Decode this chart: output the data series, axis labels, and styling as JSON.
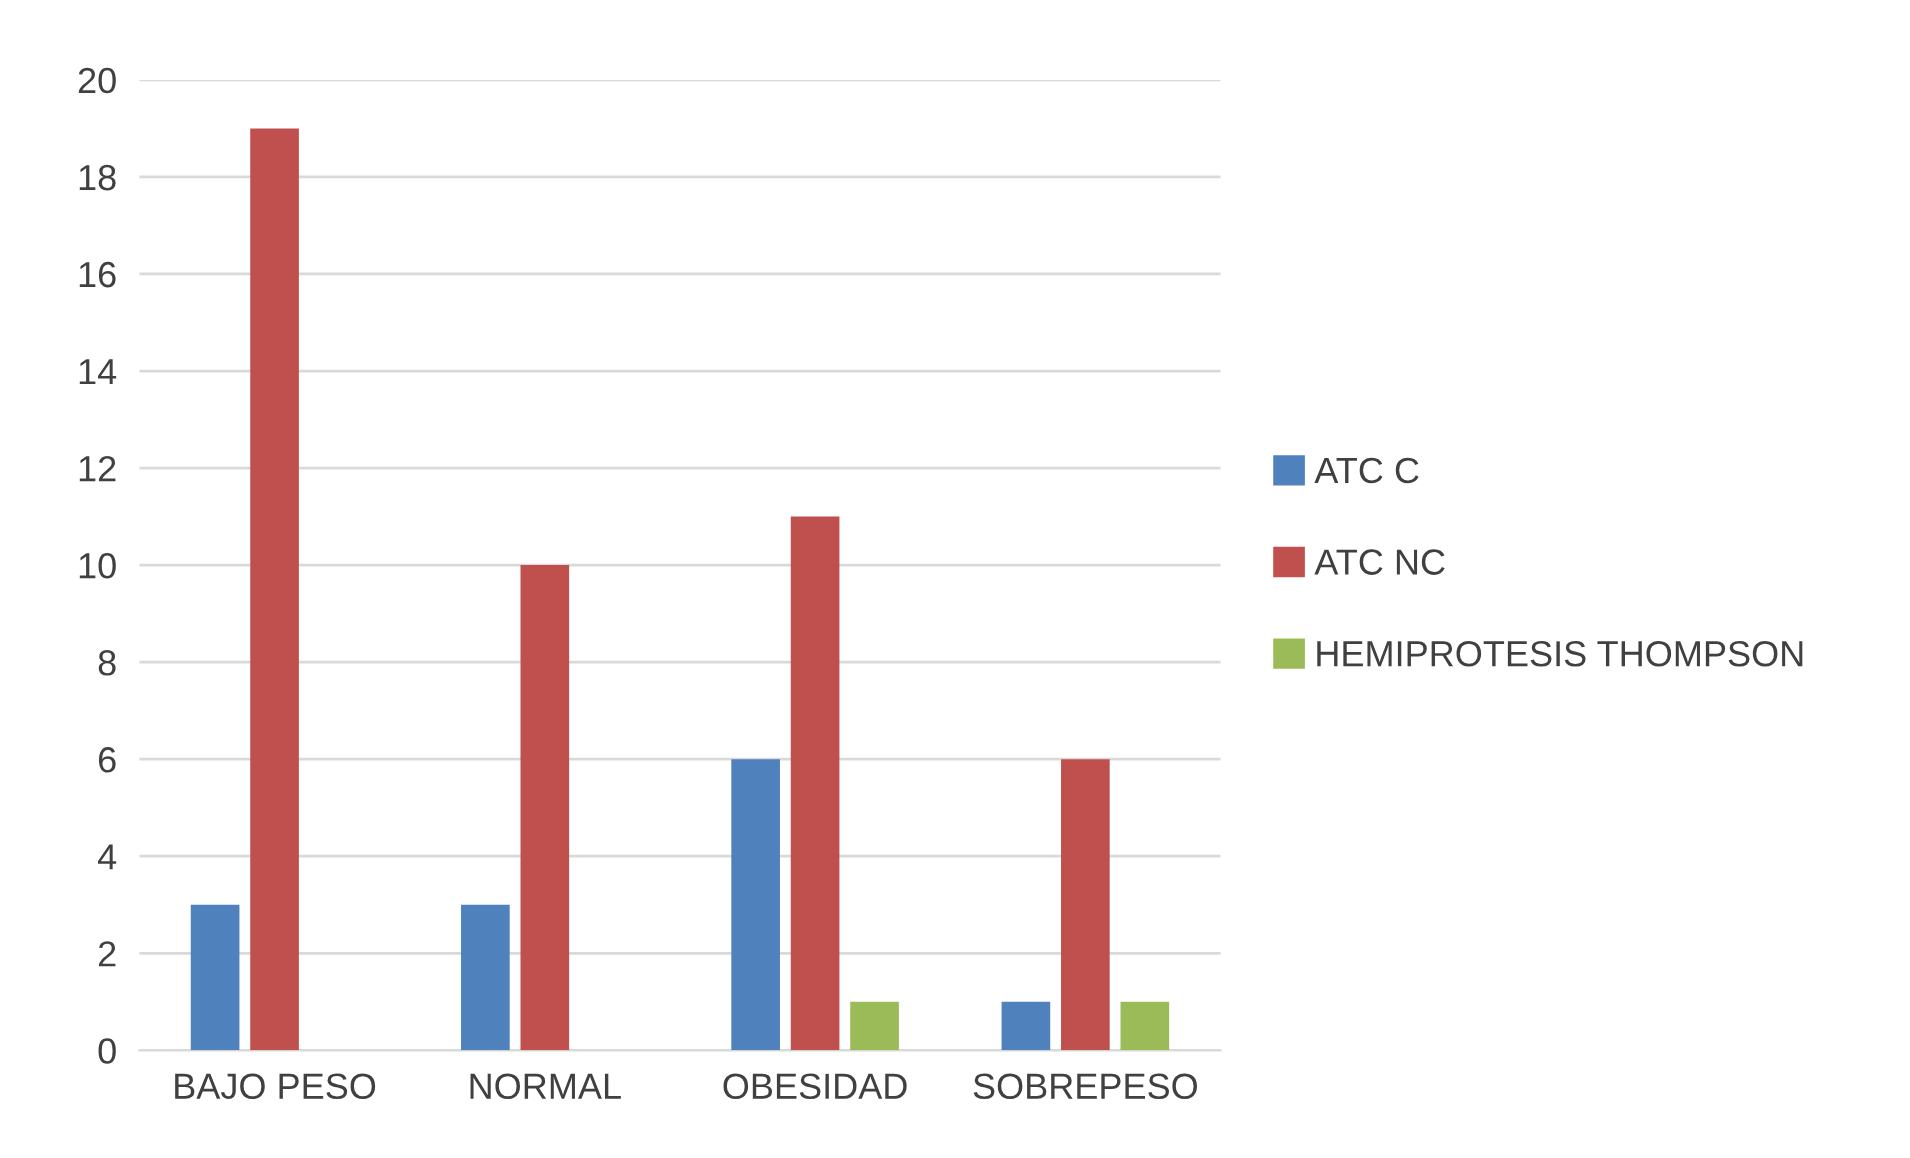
{
  "chart_data": {
    "type": "bar",
    "categories": [
      "BAJO PESO",
      "NORMAL",
      "OBESIDAD",
      "SOBREPESO"
    ],
    "series": [
      {
        "name": "ATC C",
        "color": "#4f81bd",
        "values": [
          3,
          3,
          6,
          1
        ]
      },
      {
        "name": "ATC NC",
        "color": "#c0504d",
        "values": [
          19,
          10,
          11,
          6
        ]
      },
      {
        "name": "HEMIPROTESIS THOMPSON",
        "color": "#9bbb59",
        "values": [
          0,
          0,
          1,
          1
        ]
      }
    ],
    "ylim": [
      0,
      20
    ],
    "yticks": [
      0,
      2,
      4,
      6,
      8,
      10,
      12,
      14,
      16,
      18,
      20
    ],
    "grid": "y",
    "legend": "right"
  }
}
